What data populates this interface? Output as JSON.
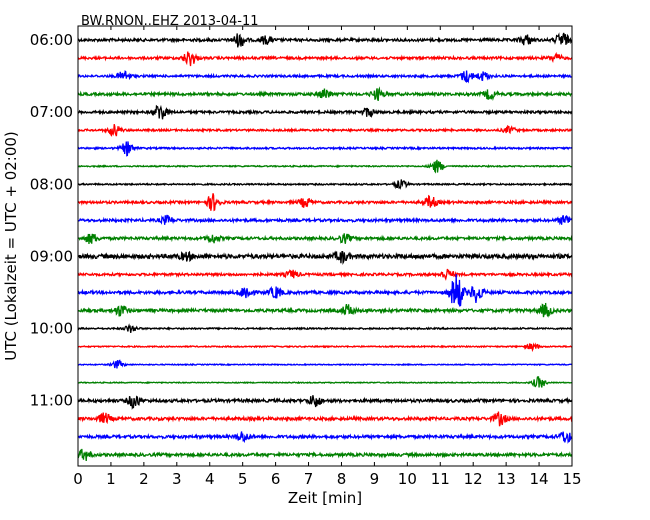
{
  "chart_data": {
    "type": "line",
    "title": "BW.RNON..EHZ 2013-04-11",
    "xlabel": "Zeit  [min]",
    "ylabel": "UTC (Lokalzeit = UTC + 02:00)",
    "xlim": [
      0,
      15
    ],
    "x_ticks": [
      "0",
      "1",
      "2",
      "3",
      "4",
      "5",
      "6",
      "7",
      "8",
      "9",
      "10",
      "11",
      "12",
      "13",
      "14",
      "15"
    ],
    "y_ticks": [
      "06:00",
      "07:00",
      "08:00",
      "09:00",
      "10:00",
      "11:00"
    ],
    "trace_interval_min": 15,
    "first_trace": "06:00",
    "trace_colors": [
      "#000000",
      "#ff0000",
      "#0000ff",
      "#008000"
    ],
    "traces": [
      {
        "start": "06:00",
        "level": 0.55,
        "events": [
          [
            4.9,
            1.6
          ],
          [
            5.7,
            0.9
          ],
          [
            13.6,
            1.2
          ],
          [
            14.7,
            1.8
          ]
        ]
      },
      {
        "start": "06:15",
        "level": 0.5,
        "events": [
          [
            3.4,
            1.8
          ],
          [
            14.5,
            0.9
          ]
        ]
      },
      {
        "start": "06:30",
        "level": 0.45,
        "events": [
          [
            1.4,
            1.2
          ],
          [
            11.8,
            1.4
          ],
          [
            12.3,
            1.0
          ]
        ]
      },
      {
        "start": "06:45",
        "level": 0.55,
        "events": [
          [
            7.5,
            1.2
          ],
          [
            9.1,
            1.3
          ],
          [
            12.5,
            1.1
          ]
        ]
      },
      {
        "start": "07:00",
        "level": 0.5,
        "events": [
          [
            2.5,
            2.0
          ],
          [
            8.8,
            1.0
          ]
        ]
      },
      {
        "start": "07:15",
        "level": 0.4,
        "events": [
          [
            1.1,
            1.4
          ],
          [
            13.1,
            0.8
          ]
        ]
      },
      {
        "start": "07:30",
        "level": 0.35,
        "events": [
          [
            1.5,
            1.6
          ]
        ]
      },
      {
        "start": "07:45",
        "level": 0.25,
        "events": [
          [
            10.9,
            1.5
          ]
        ]
      },
      {
        "start": "08:00",
        "level": 0.3,
        "events": [
          [
            9.8,
            1.0
          ]
        ]
      },
      {
        "start": "08:15",
        "level": 0.5,
        "events": [
          [
            4.1,
            2.0
          ],
          [
            10.7,
            1.4
          ],
          [
            6.9,
            1.1
          ]
        ]
      },
      {
        "start": "08:30",
        "level": 0.55,
        "events": [
          [
            2.7,
            1.0
          ],
          [
            14.8,
            1.2
          ]
        ]
      },
      {
        "start": "08:45",
        "level": 0.55,
        "events": [
          [
            0.4,
            1.2
          ],
          [
            4.1,
            1.0
          ],
          [
            8.1,
            1.0
          ]
        ]
      },
      {
        "start": "09:00",
        "level": 0.85,
        "events": [
          [
            8.0,
            1.3
          ],
          [
            3.3,
            0.8
          ]
        ]
      },
      {
        "start": "09:15",
        "level": 0.5,
        "events": [
          [
            11.2,
            1.2
          ],
          [
            6.5,
            0.9
          ]
        ]
      },
      {
        "start": "09:30",
        "level": 0.6,
        "events": [
          [
            11.5,
            4.5
          ],
          [
            12.1,
            2.2
          ],
          [
            5.1,
            1.6
          ],
          [
            6.0,
            1.3
          ]
        ]
      },
      {
        "start": "09:45",
        "level": 0.6,
        "events": [
          [
            1.3,
            1.3
          ],
          [
            8.2,
            1.3
          ],
          [
            14.2,
            1.5
          ]
        ]
      },
      {
        "start": "10:00",
        "level": 0.3,
        "events": [
          [
            1.6,
            0.9
          ]
        ]
      },
      {
        "start": "10:15",
        "level": 0.25,
        "events": [
          [
            13.8,
            0.8
          ]
        ]
      },
      {
        "start": "10:30",
        "level": 0.2,
        "events": [
          [
            1.2,
            1.0
          ]
        ]
      },
      {
        "start": "10:45",
        "level": 0.2,
        "events": [
          [
            14.0,
            1.4
          ]
        ]
      },
      {
        "start": "11:00",
        "level": 0.6,
        "events": [
          [
            1.7,
            1.6
          ],
          [
            7.2,
            1.4
          ]
        ]
      },
      {
        "start": "11:15",
        "level": 0.6,
        "events": [
          [
            0.8,
            1.2
          ],
          [
            12.8,
            1.5
          ]
        ]
      },
      {
        "start": "11:30",
        "level": 0.6,
        "events": [
          [
            5.0,
            1.2
          ],
          [
            14.8,
            1.4
          ]
        ]
      },
      {
        "start": "11:45",
        "level": 0.6,
        "events": [
          [
            0.2,
            1.3
          ]
        ]
      }
    ],
    "grid": false,
    "legend": "none"
  }
}
